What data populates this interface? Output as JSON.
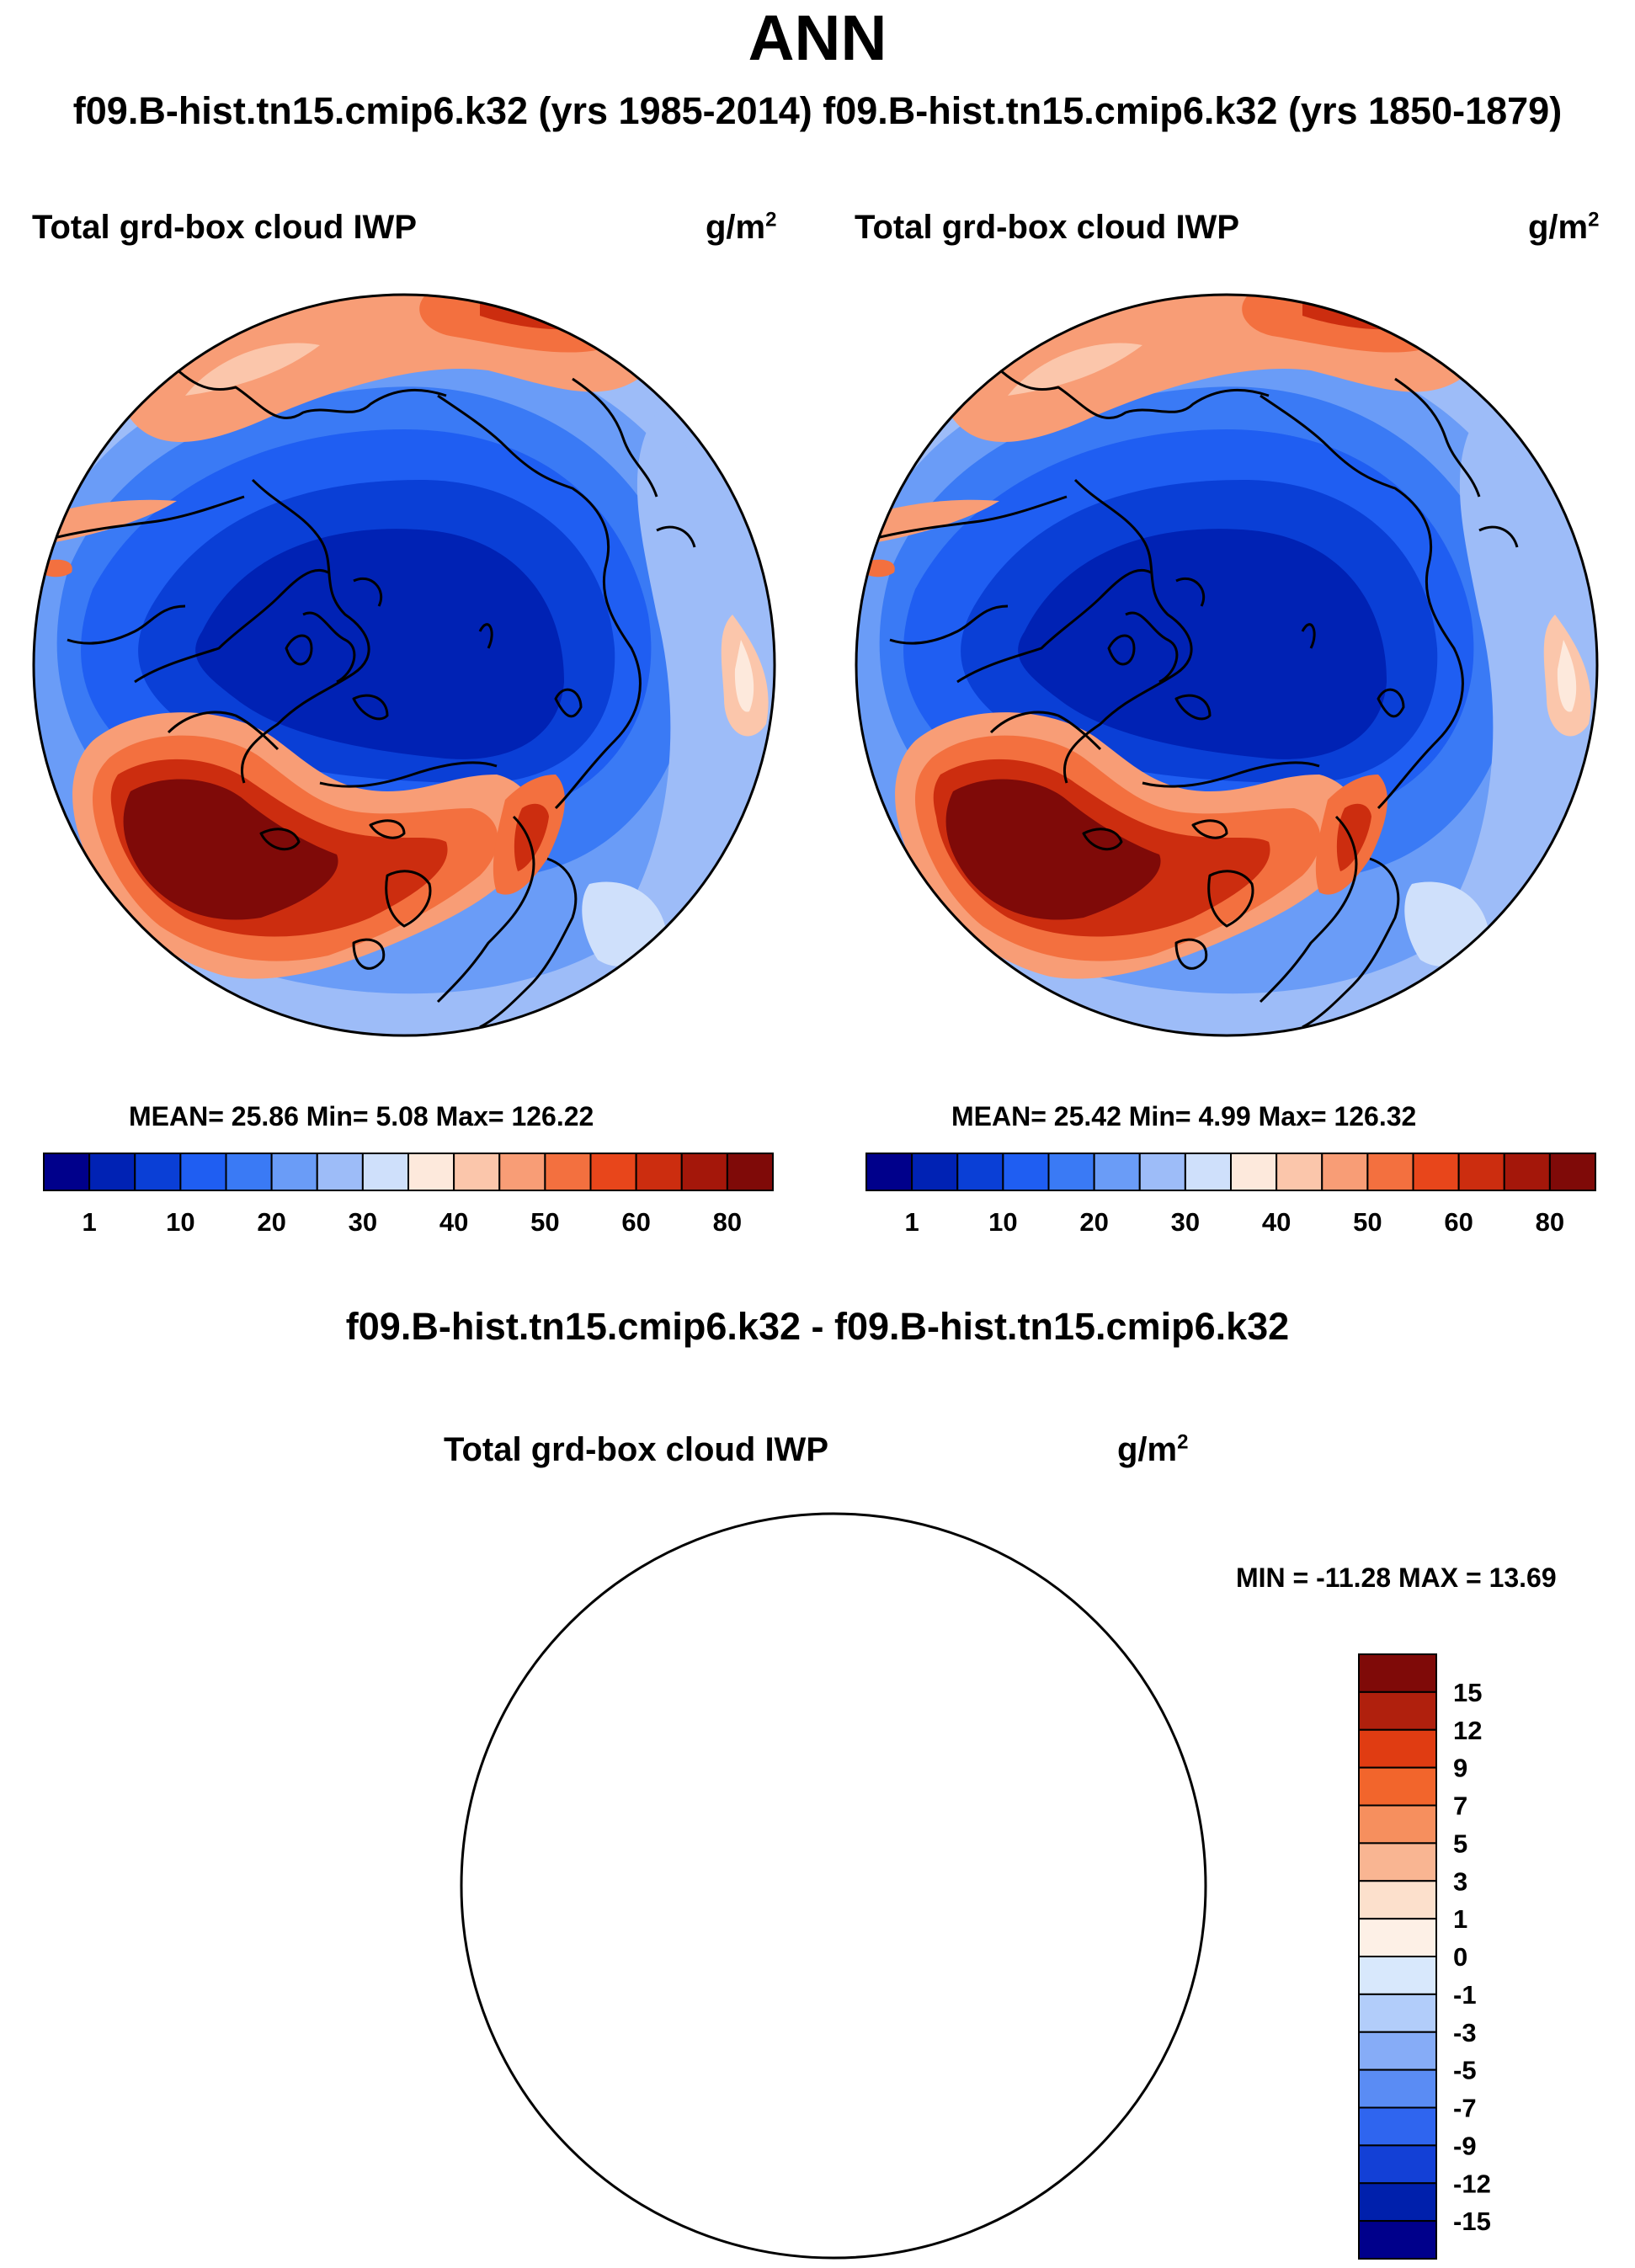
{
  "main_title": "ANN",
  "case_header": "f09.B-hist.tn15.cmip6.k32 (yrs 1985-2014) f09.B-hist.tn15.cmip6.k32 (yrs 1850-1879)",
  "diff_header": "f09.B-hist.tn15.cmip6.k32 - f09.B-hist.tn15.cmip6.k32",
  "chart_data": [
    {
      "type": "heatmap",
      "projection": "north polar stereographic",
      "title": "Total grd-box cloud IWP",
      "units": "g/m",
      "units_superscript": "2",
      "stats": "MEAN=  25.86  Min=   5.08  Max= 126.22",
      "mean": 25.86,
      "min": 5.08,
      "max": 126.22,
      "colorbar": {
        "levels": [
          1,
          5,
          10,
          15,
          20,
          25,
          30,
          35,
          40,
          45,
          50,
          55,
          60,
          70,
          80
        ],
        "tick_labels": [
          "1",
          "10",
          "20",
          "30",
          "40",
          "50",
          "60",
          "80"
        ],
        "colors": [
          "#00008b",
          "#0022b4",
          "#0a3fd6",
          "#1f5ef2",
          "#3a7af5",
          "#6a9cf7",
          "#9dbcf8",
          "#cfe0fb",
          "#fde9dc",
          "#fbc6ab",
          "#f89d76",
          "#f3703f",
          "#e8461b",
          "#cc2d0f",
          "#a4170a",
          "#7f0a08"
        ]
      }
    },
    {
      "type": "heatmap",
      "projection": "north polar stereographic",
      "title": "Total grd-box cloud IWP",
      "units": "g/m",
      "units_superscript": "2",
      "stats": "MEAN=  25.42  Min=   4.99  Max= 126.32",
      "mean": 25.42,
      "min": 4.99,
      "max": 126.32,
      "colorbar": {
        "levels": [
          1,
          5,
          10,
          15,
          20,
          25,
          30,
          35,
          40,
          45,
          50,
          55,
          60,
          70,
          80
        ],
        "tick_labels": [
          "1",
          "10",
          "20",
          "30",
          "40",
          "50",
          "60",
          "80"
        ],
        "colors": [
          "#00008b",
          "#0022b4",
          "#0a3fd6",
          "#1f5ef2",
          "#3a7af5",
          "#6a9cf7",
          "#9dbcf8",
          "#cfe0fb",
          "#fde9dc",
          "#fbc6ab",
          "#f89d76",
          "#f3703f",
          "#e8461b",
          "#cc2d0f",
          "#a4170a",
          "#7f0a08"
        ]
      }
    },
    {
      "type": "heatmap",
      "projection": "north polar stereographic",
      "title": "Total grd-box cloud IWP",
      "units": "g/m",
      "units_superscript": "2",
      "stats": "MIN = -11.28 MAX =  13.69",
      "min": -11.28,
      "max": 13.69,
      "colorbar": {
        "levels": [
          -15,
          -12,
          -9,
          -7,
          -5,
          -3,
          -1,
          0,
          1,
          3,
          5,
          7,
          9,
          12,
          15
        ],
        "tick_labels": [
          "15",
          "12",
          "9",
          "7",
          "5",
          "3",
          "1",
          "0",
          "-1",
          "-3",
          "-5",
          "-7",
          "-9",
          "-12",
          "-15"
        ],
        "colors_top_to_bottom": [
          "#7f0a08",
          "#b0200d",
          "#e03c12",
          "#f2652c",
          "#f68f5e",
          "#f9b592",
          "#fce0cc",
          "#fdf0e6",
          "#d8e8fc",
          "#b2cdfa",
          "#86acf7",
          "#5a8cf4",
          "#2f65ef",
          "#1340d6",
          "#0020ac",
          "#00008b"
        ]
      }
    }
  ],
  "colors": {
    "background": "#ffffff",
    "ocean_deep_blue": "#0a3fd6",
    "warm_red": "#7f0a08"
  }
}
